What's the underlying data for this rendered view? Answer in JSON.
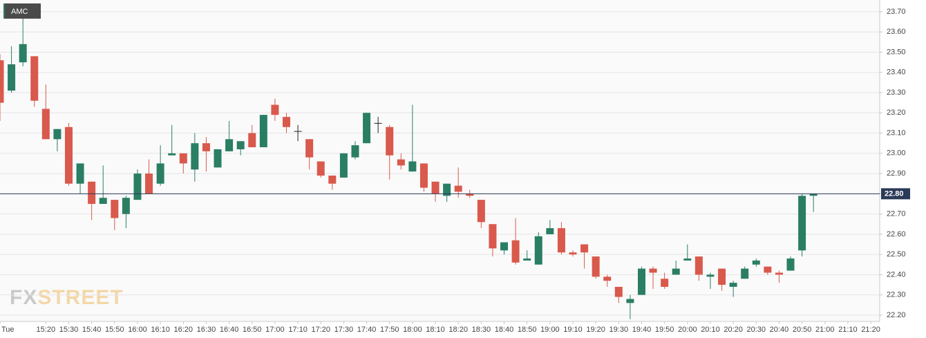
{
  "chart_data": {
    "type": "candlestick",
    "series": [
      {
        "name": "AMC",
        "up_color": "#2a7e64",
        "down_color": "#d9594c",
        "open": [
          23.46,
          23.31,
          23.45,
          23.48,
          23.22,
          23.07,
          23.13,
          22.85,
          22.86,
          22.75,
          22.77,
          22.7,
          22.77,
          22.9,
          22.85,
          22.99,
          23.0,
          22.92,
          23.05,
          22.93,
          23.01,
          23.02,
          23.1,
          23.03,
          23.24,
          23.18,
          23.11,
          23.07,
          22.96,
          22.89,
          22.88,
          22.98,
          23.05,
          23.15,
          23.13,
          22.97,
          22.91,
          22.95,
          22.86,
          22.79,
          22.84,
          22.8,
          22.77,
          22.65,
          22.52,
          22.57,
          22.47,
          22.45,
          22.6,
          22.63,
          22.51,
          22.55,
          22.49,
          22.39,
          22.34,
          22.26,
          22.3,
          22.43,
          22.38,
          22.4,
          22.47,
          22.49,
          22.39,
          22.43,
          22.34,
          22.38,
          22.45,
          22.44,
          22.41,
          22.42,
          22.52,
          22.79,
          null,
          null,
          null,
          null,
          null
        ],
        "high": [
          23.49,
          23.53,
          23.74,
          23.48,
          23.34,
          23.12,
          23.15,
          22.95,
          22.86,
          22.94,
          22.77,
          22.79,
          22.92,
          22.97,
          23.04,
          23.14,
          23.0,
          23.1,
          23.08,
          23.02,
          23.16,
          23.06,
          23.14,
          23.19,
          23.27,
          23.2,
          23.14,
          23.07,
          22.96,
          22.89,
          23.0,
          23.06,
          23.2,
          23.18,
          23.14,
          23.0,
          23.24,
          22.95,
          22.86,
          22.85,
          22.93,
          22.82,
          22.77,
          22.65,
          22.56,
          22.68,
          22.52,
          22.61,
          22.67,
          22.66,
          22.52,
          22.55,
          22.49,
          22.4,
          22.34,
          22.3,
          22.44,
          22.44,
          22.41,
          22.47,
          22.55,
          22.49,
          22.41,
          22.43,
          22.37,
          22.44,
          22.48,
          22.44,
          22.42,
          22.49,
          22.8,
          22.8,
          null,
          null,
          null,
          null,
          null
        ],
        "low": [
          23.16,
          23.3,
          23.43,
          23.23,
          23.07,
          23.01,
          22.84,
          22.8,
          22.67,
          22.75,
          22.62,
          22.63,
          22.77,
          22.8,
          22.84,
          22.99,
          22.9,
          22.86,
          22.91,
          22.93,
          23.01,
          22.99,
          23.03,
          23.03,
          23.16,
          23.1,
          23.06,
          22.92,
          22.88,
          22.82,
          22.88,
          22.97,
          23.05,
          23.1,
          22.87,
          22.92,
          22.91,
          22.81,
          22.76,
          22.76,
          22.78,
          22.78,
          22.63,
          22.49,
          22.5,
          22.45,
          22.47,
          22.45,
          22.6,
          22.5,
          22.49,
          22.43,
          22.38,
          22.34,
          22.26,
          22.18,
          22.3,
          22.33,
          22.33,
          22.4,
          22.47,
          22.37,
          22.33,
          22.32,
          22.29,
          22.38,
          22.44,
          22.4,
          22.36,
          22.42,
          22.49,
          22.71,
          null,
          null,
          null,
          null,
          null
        ],
        "close": [
          23.25,
          23.44,
          23.54,
          23.26,
          23.07,
          23.12,
          22.85,
          22.95,
          22.75,
          22.78,
          22.68,
          22.78,
          22.9,
          22.8,
          22.95,
          23.0,
          22.95,
          23.05,
          23.01,
          23.02,
          23.07,
          23.06,
          23.03,
          23.19,
          23.19,
          23.13,
          23.11,
          22.98,
          22.89,
          22.85,
          23.0,
          23.04,
          23.2,
          23.15,
          22.99,
          22.94,
          22.96,
          22.83,
          22.8,
          22.85,
          22.81,
          22.79,
          22.66,
          22.53,
          22.56,
          22.46,
          22.48,
          22.59,
          22.63,
          22.51,
          22.5,
          22.51,
          22.39,
          22.37,
          22.29,
          22.28,
          22.43,
          22.41,
          22.34,
          22.43,
          22.48,
          22.4,
          22.4,
          22.35,
          22.36,
          22.43,
          22.47,
          22.41,
          22.4,
          22.48,
          22.79,
          22.8,
          null,
          null,
          null,
          null,
          null
        ]
      }
    ],
    "categories": [
      "Tue",
      null,
      null,
      null,
      "15:20",
      null,
      "15:30",
      null,
      "15:40",
      null,
      "15:50",
      null,
      "16:00",
      null,
      "16:10",
      null,
      "16:20",
      null,
      "16:30",
      null,
      "16:40",
      null,
      "16:50",
      null,
      "17:00",
      null,
      "17:10",
      null,
      "17:20",
      null,
      "17:30",
      null,
      "17:40",
      null,
      "17:50",
      null,
      "18:00",
      null,
      "18:10",
      null,
      "18:20",
      null,
      "18:30",
      null,
      "18:40",
      null,
      "18:50",
      null,
      "19:00",
      null,
      "19:10",
      null,
      "19:20",
      null,
      "19:30",
      null,
      "19:40",
      null,
      "19:50",
      null,
      "20:00",
      null,
      "20:10",
      null,
      "20:20",
      null,
      "20:30",
      null,
      "20:40",
      null,
      "20:50",
      null,
      "21:00",
      null,
      "21:10",
      null,
      "21:20"
    ],
    "ylim": [
      22.169,
      23.758
    ],
    "yticks": [
      {
        "value": 22.2,
        "label": "22.20"
      },
      {
        "value": 22.3,
        "label": "22.30"
      },
      {
        "value": 22.4,
        "label": "22.40"
      },
      {
        "value": 22.5,
        "label": "22.50"
      },
      {
        "value": 22.6,
        "label": "22.60"
      },
      {
        "value": 22.7,
        "label": "22.70"
      },
      {
        "value": 22.8,
        "label": "22.80"
      },
      {
        "value": 22.9,
        "label": "22.90"
      },
      {
        "value": 23.0,
        "label": "23.00"
      },
      {
        "value": 23.1,
        "label": "23.10"
      },
      {
        "value": 23.2,
        "label": "23.20"
      },
      {
        "value": 23.3,
        "label": "23.30"
      },
      {
        "value": 23.4,
        "label": "23.40"
      },
      {
        "value": 23.5,
        "label": "23.50"
      },
      {
        "value": 23.6,
        "label": "23.60"
      },
      {
        "value": 23.7,
        "label": "23.70"
      }
    ],
    "grid": true,
    "last_price": {
      "value": 22.8,
      "label": "22.80",
      "color": "#2b3a58"
    },
    "watermark": [
      "FX",
      "STREET"
    ]
  }
}
